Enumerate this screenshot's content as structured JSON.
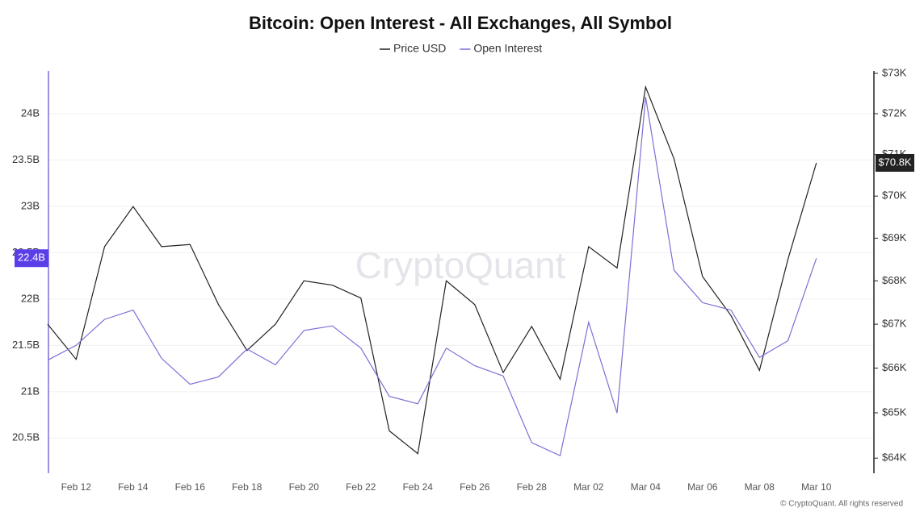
{
  "chart_data": {
    "type": "line",
    "title": "Bitcoin: Open Interest - All Exchanges, All Symbol",
    "watermark": "CryptoQuant",
    "footer": "© CryptoQuant. All rights reserved",
    "categories": [
      null,
      "Feb 12",
      null,
      "Feb 14",
      null,
      "Feb 16",
      null,
      "Feb 18",
      null,
      "Feb 20",
      null,
      "Feb 22",
      null,
      "Feb 24",
      null,
      "Feb 26",
      null,
      "Feb 28",
      null,
      "Mar 02",
      null,
      "Mar 04",
      null,
      "Mar 06",
      null,
      "Mar 08",
      null,
      "Mar 10"
    ],
    "series": [
      {
        "name": "Price USD",
        "color": "#222222",
        "axis": "y2",
        "values": [
          67000,
          66200,
          68800,
          69750,
          68800,
          68850,
          67450,
          66400,
          67000,
          68000,
          67900,
          67600,
          64600,
          64100,
          68000,
          67450,
          65900,
          66950,
          65750,
          68800,
          68300,
          72660,
          70900,
          68100,
          67200,
          65950,
          68500,
          70800
        ],
        "value_labels": [
          null,
          null,
          null,
          null,
          null,
          null,
          null,
          null,
          null,
          null,
          null,
          null,
          null,
          null,
          null,
          null,
          null,
          null,
          null,
          null,
          null,
          null,
          null,
          null,
          null,
          null,
          null,
          "$70.8K"
        ]
      },
      {
        "name": "Open Interest",
        "color": "#7b6fd6",
        "flag_color": "#5a3ee8",
        "values": [
          21340000000,
          21500000000,
          21780000000,
          21880000000,
          21360000000,
          21080000000,
          21160000000,
          21460000000,
          21290000000,
          21660000000,
          21710000000,
          21470000000,
          20950000000,
          20870000000,
          21470000000,
          21280000000,
          21170000000,
          20450000000,
          20310000000,
          21750000000,
          20770000000,
          24180000000,
          22310000000,
          21960000000,
          21880000000,
          21370000000,
          21550000000,
          22440000000
        ],
        "value_labels": [
          null,
          null,
          null,
          null,
          null,
          null,
          null,
          null,
          null,
          null,
          null,
          null,
          null,
          null,
          null,
          null,
          null,
          null,
          null,
          null,
          null,
          null,
          null,
          null,
          null,
          null,
          null,
          "22.4B"
        ]
      }
    ],
    "ylim": [
      20120000000,
      24460000000
    ],
    "yticks": [
      {
        "value": 20500000000,
        "label": "20.5B"
      },
      {
        "value": 21000000000,
        "label": "21B"
      },
      {
        "value": 21500000000,
        "label": "21.5B"
      },
      {
        "value": 22000000000,
        "label": "22B"
      },
      {
        "value": 22500000000,
        "label": "22.5B"
      },
      {
        "value": 23000000000,
        "label": "23B"
      },
      {
        "value": 23500000000,
        "label": "23.5B"
      },
      {
        "value": 24000000000,
        "label": "24B"
      }
    ],
    "y2lim": [
      63670,
      73060
    ],
    "y2log": true,
    "y2ticks": [
      {
        "value": 64000,
        "label": "$64K"
      },
      {
        "value": 65000,
        "label": "$65K"
      },
      {
        "value": 66000,
        "label": "$66K"
      },
      {
        "value": 67000,
        "label": "$67K"
      },
      {
        "value": 68000,
        "label": "$68K"
      },
      {
        "value": 69000,
        "label": "$69K"
      },
      {
        "value": 70000,
        "label": "$70K"
      },
      {
        "value": 71000,
        "label": "$71K"
      },
      {
        "value": 72000,
        "label": "$72K"
      },
      {
        "value": 73000,
        "label": "$73K"
      }
    ],
    "grid": true
  }
}
